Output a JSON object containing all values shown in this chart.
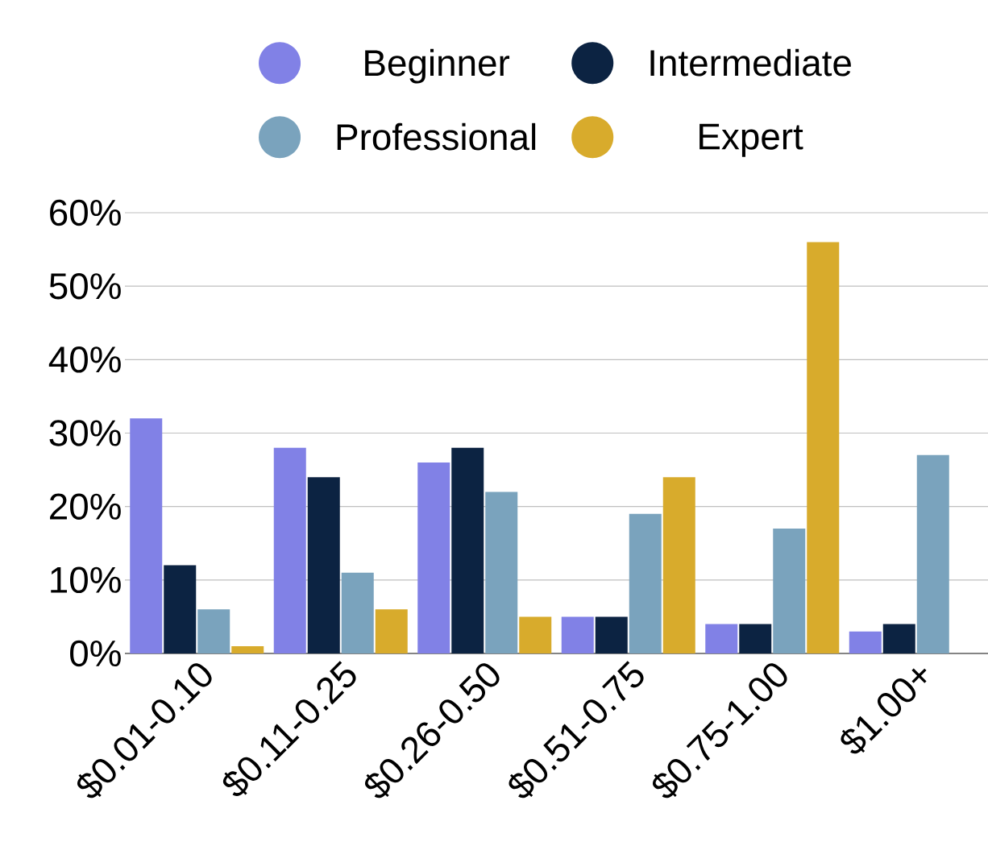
{
  "chart_data": {
    "type": "bar",
    "categories": [
      "$0.01-0.10",
      "$0.11-0.25",
      "$0.26-0.50",
      "$0.51-0.75",
      "$0.75-1.00",
      "$1.00+"
    ],
    "series": [
      {
        "name": "Beginner",
        "color": "#8181e6",
        "values": [
          32,
          28,
          26,
          5,
          4,
          3
        ]
      },
      {
        "name": "Intermediate",
        "color": "#0c2342",
        "values": [
          12,
          24,
          28,
          5,
          4,
          4
        ]
      },
      {
        "name": "Professional",
        "color": "#7aa3bd",
        "values": [
          6,
          11,
          22,
          19,
          17,
          27
        ]
      },
      {
        "name": "Expert",
        "color": "#d8ab2c",
        "values": [
          1,
          6,
          5,
          24,
          56,
          null
        ]
      }
    ],
    "ylim": [
      0,
      60
    ],
    "yticks": [
      {
        "value": 0,
        "label": "0%"
      },
      {
        "value": 10,
        "label": "10%"
      },
      {
        "value": 20,
        "label": "20%"
      },
      {
        "value": 30,
        "label": "30%"
      },
      {
        "value": 40,
        "label": "40%"
      },
      {
        "value": 50,
        "label": "50%"
      },
      {
        "value": 60,
        "label": "60%"
      }
    ],
    "grid": "y",
    "legend": "top"
  }
}
